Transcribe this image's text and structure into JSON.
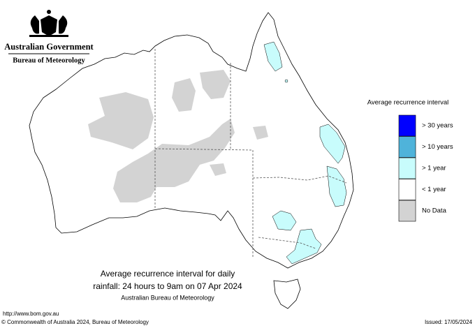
{
  "header": {
    "title": "Australian Government",
    "subtitle": "Bureau of Meteorology"
  },
  "legend": {
    "title": "Average recurrence interval",
    "items": [
      {
        "label": "> 30 years",
        "color": "#0000ff"
      },
      {
        "label": "> 10 years",
        "color": "#4fb3da"
      },
      {
        "label": "> 1 year",
        "color": "#c8fcfc"
      },
      {
        "label": "< 1 year",
        "color": "#ffffff"
      },
      {
        "label": "No Data",
        "color": "#d3d3d3"
      }
    ]
  },
  "caption": {
    "line1": "Average recurrence interval for daily",
    "line2": "rainfall: 24 hours to 9am on 07 Apr 2024",
    "line3": "Australian Bureau of Meteorology"
  },
  "footer": {
    "url": "http://www.bom.gov.au",
    "copyright": "© Commonwealth of Australia 2024, Bureau of Meteorology",
    "issued": "Issued: 17/05/2024"
  }
}
